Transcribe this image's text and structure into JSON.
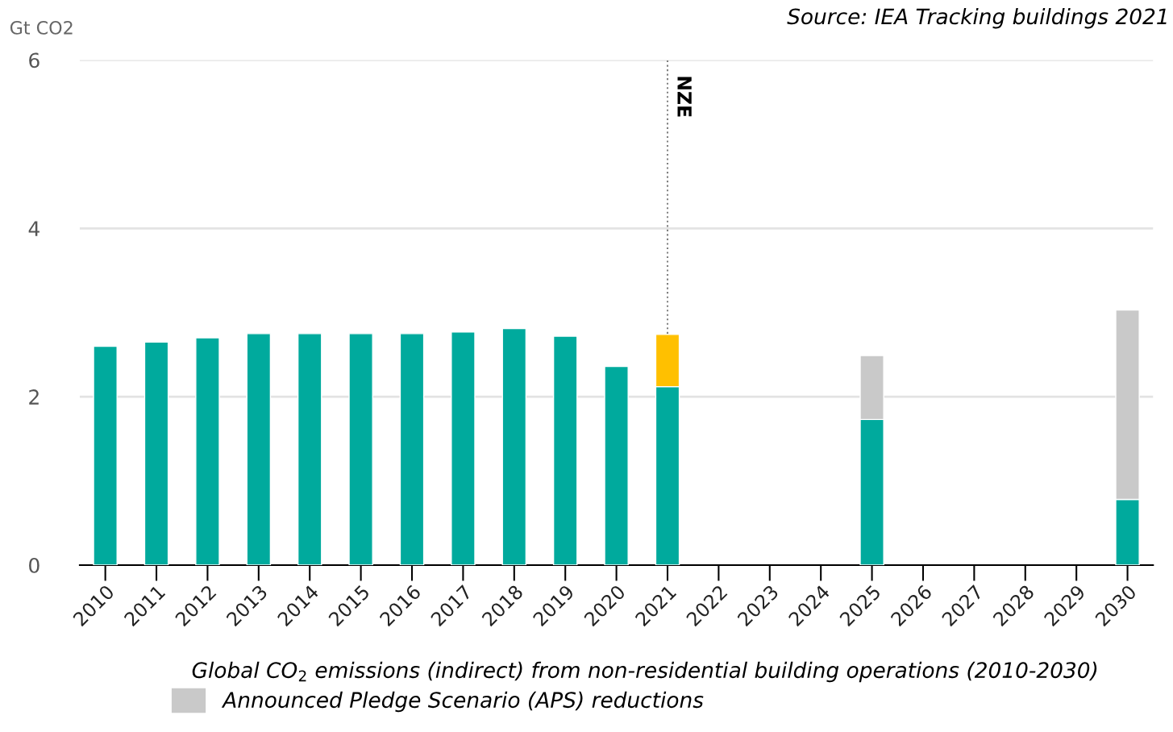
{
  "chart_data": {
    "type": "bar",
    "stacked": true,
    "title": "Global CO$_{2}$ emissions (indirect) from non-residential building operations (2010-2030)",
    "ylabel": "Gt CO2",
    "annotations": [
      "Source: IEA Tracking buildings 2021"
    ],
    "x": [
      2010,
      2011,
      2012,
      2013,
      2014,
      2015,
      2016,
      2017,
      2018,
      2019,
      2020,
      2021,
      2022,
      2023,
      2024,
      2025,
      2026,
      2027,
      2028,
      2029,
      2030
    ],
    "series": [
      {
        "color": "#00aa9d",
        "values": [
          2.6,
          2.65,
          2.7,
          2.75,
          2.75,
          2.75,
          2.75,
          2.77,
          2.81,
          2.72,
          2.36,
          2.12,
          null,
          null,
          null,
          1.73,
          null,
          null,
          null,
          null,
          0.78
        ]
      },
      {
        "color": "#ffc000",
        "values": [
          null,
          null,
          null,
          null,
          null,
          null,
          null,
          null,
          null,
          null,
          null,
          0.62,
          null,
          null,
          null,
          null,
          null,
          null,
          null,
          null,
          null
        ]
      },
      {
        "name": "Announced Pledge Scenario (APS) reductions",
        "color": "#c9c9c9",
        "values": [
          null,
          null,
          null,
          null,
          null,
          null,
          null,
          null,
          null,
          null,
          null,
          null,
          null,
          null,
          null,
          0.76,
          null,
          null,
          null,
          null,
          2.25
        ]
      }
    ],
    "xlim": [
      2009.5,
      2030.5
    ],
    "xticks": [
      2010,
      2011,
      2012,
      2013,
      2014,
      2015,
      2016,
      2017,
      2018,
      2019,
      2020,
      2021,
      2022,
      2023,
      2024,
      2025,
      2026,
      2027,
      2028,
      2029,
      2030
    ],
    "ylim": [
      0,
      6
    ],
    "yticks": [
      0,
      2,
      4,
      6
    ],
    "ref_lines": [
      {
        "axis": "x",
        "value": 2021,
        "label": "NZE",
        "color": "#808080",
        "line_style": "dotted"
      }
    ],
    "grid": "y",
    "legend": "bottom left"
  }
}
